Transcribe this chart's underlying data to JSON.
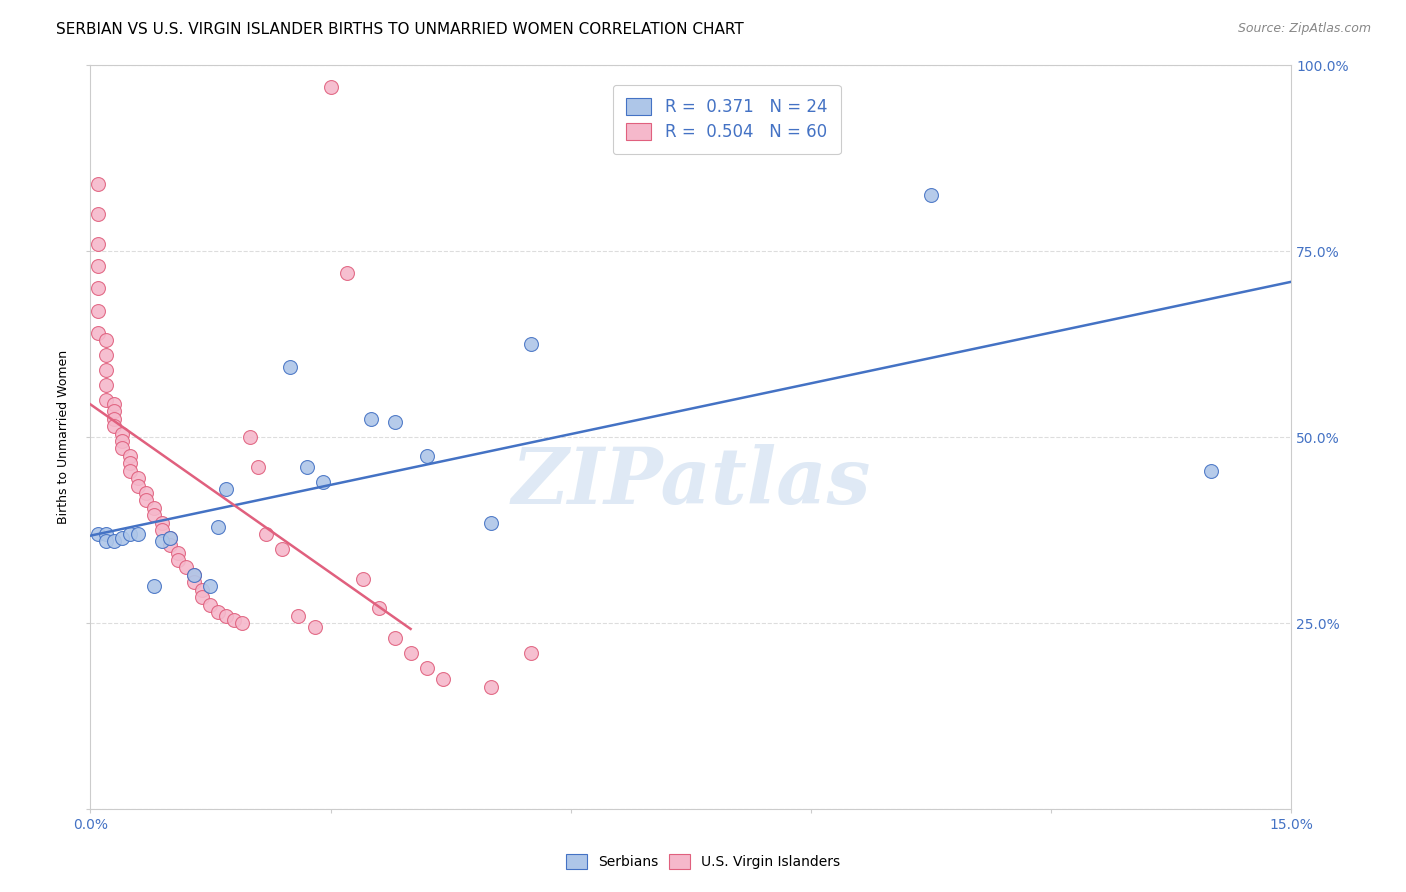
{
  "title": "SERBIAN VS U.S. VIRGIN ISLANDER BIRTHS TO UNMARRIED WOMEN CORRELATION CHART",
  "source": "Source: ZipAtlas.com",
  "ylabel": "Births to Unmarried Women",
  "xmin": 0.0,
  "xmax": 0.15,
  "ymin": 0.0,
  "ymax": 1.0,
  "xtick_vals": [
    0.0,
    0.03,
    0.06,
    0.09,
    0.12,
    0.15
  ],
  "xtick_labels": [
    "0.0%",
    "",
    "",
    "",
    "",
    "15.0%"
  ],
  "ytick_vals": [
    0.0,
    0.25,
    0.5,
    0.75,
    1.0
  ],
  "ytick_labels_right": [
    "",
    "25.0%",
    "50.0%",
    "75.0%",
    "100.0%"
  ],
  "watermark": "ZIPatlas",
  "legend_serbian": "R =  0.371   N = 24",
  "legend_usvi": "R =  0.504   N = 60",
  "serbian_color": "#aec6e8",
  "usvi_color": "#f5b8cb",
  "trendline_serbian_color": "#4472c4",
  "trendline_usvi_color": "#e0607e",
  "serbian_x": [
    0.001,
    0.002,
    0.002,
    0.003,
    0.004,
    0.005,
    0.006,
    0.008,
    0.009,
    0.01,
    0.013,
    0.015,
    0.016,
    0.017,
    0.025,
    0.027,
    0.029,
    0.035,
    0.038,
    0.042,
    0.05,
    0.055,
    0.105,
    0.14
  ],
  "serbian_y": [
    0.37,
    0.37,
    0.36,
    0.36,
    0.365,
    0.37,
    0.37,
    0.3,
    0.36,
    0.365,
    0.315,
    0.3,
    0.38,
    0.43,
    0.595,
    0.46,
    0.44,
    0.525,
    0.52,
    0.475,
    0.385,
    0.625,
    0.825,
    0.455
  ],
  "usvi_x": [
    0.001,
    0.001,
    0.001,
    0.001,
    0.001,
    0.001,
    0.001,
    0.002,
    0.002,
    0.002,
    0.002,
    0.002,
    0.003,
    0.003,
    0.003,
    0.003,
    0.004,
    0.004,
    0.004,
    0.005,
    0.005,
    0.005,
    0.006,
    0.006,
    0.007,
    0.007,
    0.008,
    0.008,
    0.009,
    0.009,
    0.01,
    0.01,
    0.011,
    0.011,
    0.012,
    0.013,
    0.013,
    0.014,
    0.014,
    0.015,
    0.016,
    0.017,
    0.018,
    0.019,
    0.02,
    0.021,
    0.022,
    0.024,
    0.026,
    0.028,
    0.03,
    0.032,
    0.034,
    0.036,
    0.038,
    0.04,
    0.042,
    0.044,
    0.05,
    0.055
  ],
  "usvi_y": [
    0.84,
    0.8,
    0.76,
    0.73,
    0.7,
    0.67,
    0.64,
    0.63,
    0.61,
    0.59,
    0.57,
    0.55,
    0.545,
    0.535,
    0.525,
    0.515,
    0.505,
    0.495,
    0.485,
    0.475,
    0.465,
    0.455,
    0.445,
    0.435,
    0.425,
    0.415,
    0.405,
    0.395,
    0.385,
    0.375,
    0.365,
    0.355,
    0.345,
    0.335,
    0.325,
    0.315,
    0.305,
    0.295,
    0.285,
    0.275,
    0.265,
    0.26,
    0.255,
    0.25,
    0.5,
    0.46,
    0.37,
    0.35,
    0.26,
    0.245,
    0.97,
    0.72,
    0.31,
    0.27,
    0.23,
    0.21,
    0.19,
    0.175,
    0.165,
    0.21
  ],
  "title_fontsize": 11,
  "axis_label_fontsize": 9,
  "tick_fontsize": 10,
  "source_fontsize": 9,
  "background_color": "#ffffff",
  "grid_color": "#dddddd",
  "axis_color": "#cccccc"
}
